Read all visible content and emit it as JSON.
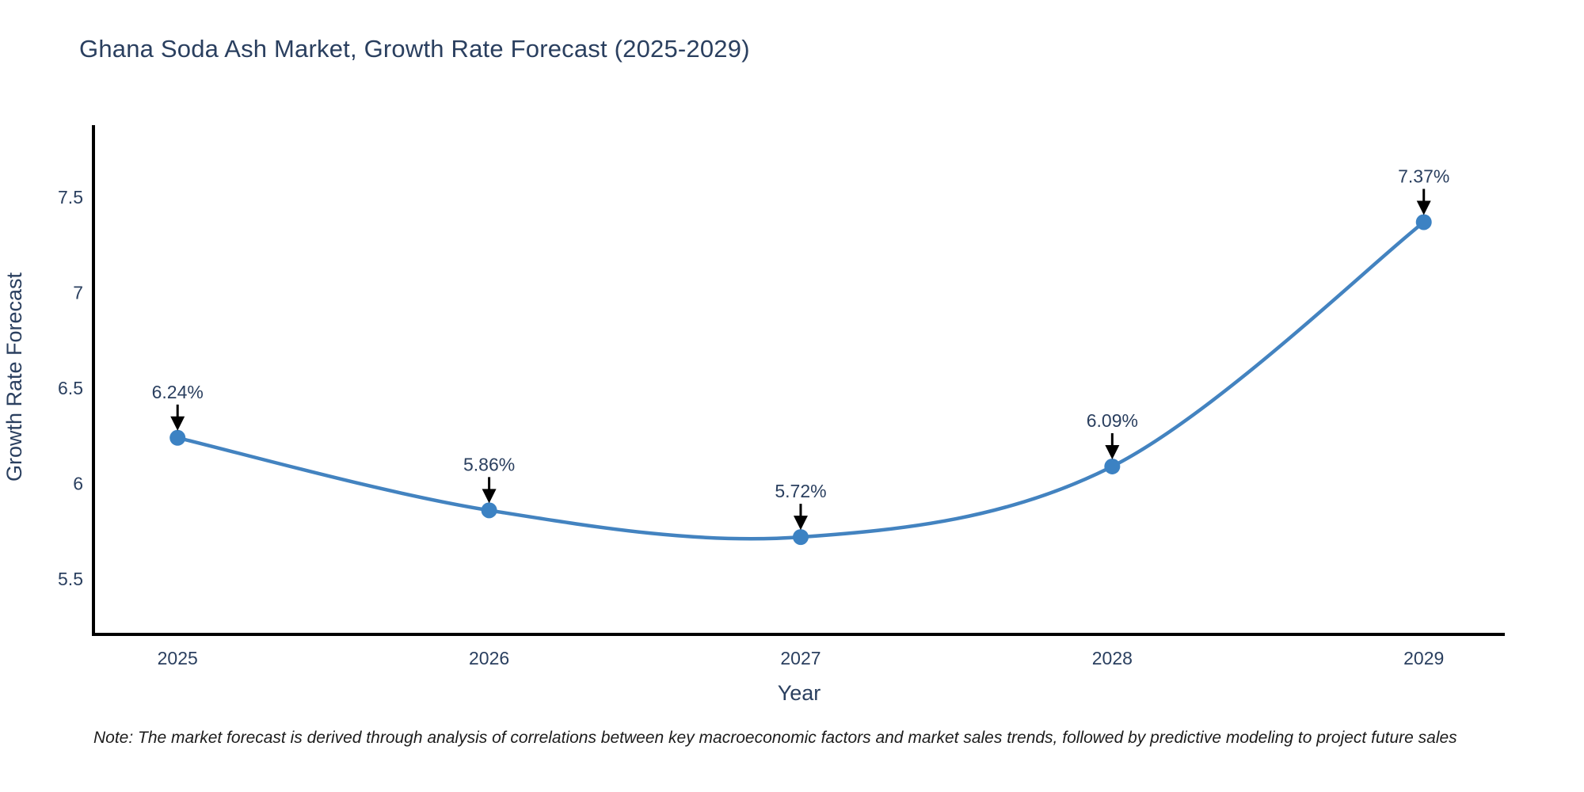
{
  "note": "Note: The market forecast is derived through analysis of correlations between key macroeconomic factors and market sales trends, followed by predictive modeling to project future sales",
  "chart_data": {
    "type": "line",
    "title": "Ghana Soda Ash Market, Growth Rate Forecast (2025-2029)",
    "x": [
      2025,
      2026,
      2027,
      2028,
      2029
    ],
    "values": [
      6.24,
      5.86,
      5.72,
      6.09,
      7.37
    ],
    "point_labels": [
      "6.24%",
      "5.86%",
      "5.72%",
      "6.09%",
      "7.37%"
    ],
    "xtick_labels": [
      "2025",
      "2026",
      "2027",
      "2028",
      "2029"
    ],
    "yticks": [
      5.5,
      6,
      6.5,
      7,
      7.5
    ],
    "ytick_labels": [
      "5.5",
      "6",
      "6.5",
      "7",
      "7.5"
    ],
    "xlabel": "Year",
    "ylabel": "Growth Rate Forecast",
    "xlim": [
      2024.73,
      2029.26
    ],
    "ylim": [
      5.21,
      7.87
    ],
    "grid": false,
    "legend": "none",
    "line_color": "#4383c0",
    "marker_color": "#3c82c3",
    "annotation_arrow_color": "#000000",
    "axis_line_color": "#000000",
    "text_color": "#2a3f5f"
  }
}
